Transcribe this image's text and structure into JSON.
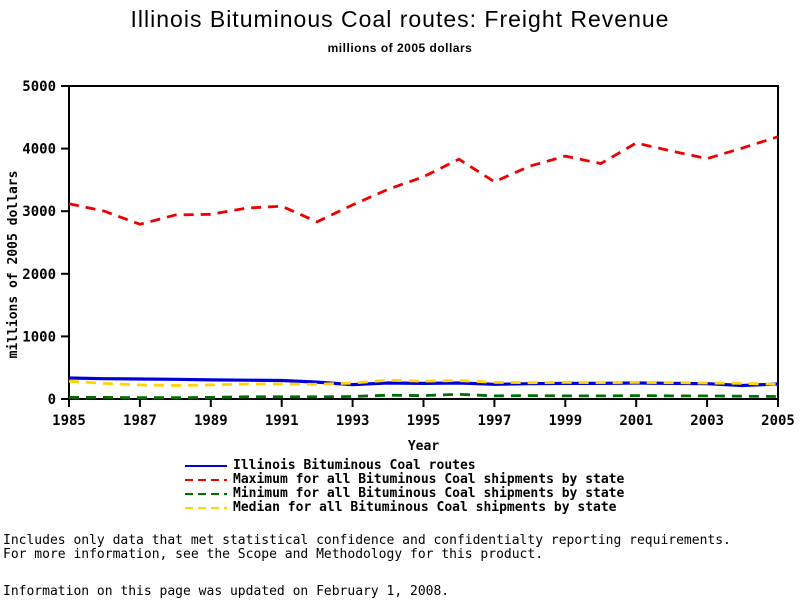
{
  "page": {
    "title": "Illinois Bituminous Coal routes: Freight Revenue",
    "subtitle": "millions of 2005 dollars",
    "notes_line1": "Includes only data that met statistical confidence and confidentialty reporting requirements.",
    "notes_line2": "For more information, see the Scope and Methodology for this product.",
    "updated": "Information on this page was updated on February 1, 2008."
  },
  "chart_data": {
    "type": "line",
    "title": "Illinois Bituminous Coal routes: Freight Revenue",
    "subtitle": "millions of 2005 dollars",
    "xlabel": "Year",
    "ylabel": "millions of 2005 dollars",
    "x": [
      1985,
      1986,
      1987,
      1988,
      1989,
      1990,
      1991,
      1992,
      1993,
      1994,
      1995,
      1996,
      1997,
      1998,
      1999,
      2000,
      2001,
      2002,
      2003,
      2004,
      2005
    ],
    "x_tick_years": [
      1985,
      1987,
      1989,
      1991,
      1993,
      1995,
      1997,
      1999,
      2001,
      2003,
      2005
    ],
    "y_ticks": [
      0,
      1000,
      2000,
      3000,
      4000,
      5000
    ],
    "ylim": [
      0,
      5000
    ],
    "grid": false,
    "legend_position": "bottom",
    "axis_color": "#000000",
    "series": [
      {
        "name": "Illinois Bituminous Coal routes",
        "color": "#0000d8",
        "style": "solid",
        "values": [
          335,
          325,
          320,
          315,
          305,
          300,
          295,
          270,
          230,
          255,
          250,
          255,
          235,
          245,
          250,
          250,
          255,
          250,
          245,
          215,
          240
        ]
      },
      {
        "name": "Maximum for all Bituminous Coal shipments by state",
        "color": "#ee0000",
        "style": "dashed",
        "values": [
          3120,
          3000,
          2790,
          2940,
          2950,
          3050,
          3080,
          2830,
          3100,
          3350,
          3550,
          3830,
          3470,
          3720,
          3880,
          3760,
          4090,
          3960,
          3840,
          4010,
          4190
        ]
      },
      {
        "name": "Minimum for all Bituminous Coal shipments by state",
        "color": "#007000",
        "style": "dashed",
        "values": [
          25,
          25,
          20,
          20,
          25,
          35,
          35,
          35,
          40,
          60,
          55,
          75,
          50,
          55,
          50,
          50,
          55,
          50,
          50,
          45,
          40
        ]
      },
      {
        "name": "Median for all Bituminous Coal shipments by state",
        "color": "#ffd400",
        "style": "dashed",
        "values": [
          285,
          250,
          225,
          215,
          225,
          240,
          240,
          235,
          255,
          300,
          285,
          295,
          265,
          260,
          265,
          260,
          265,
          260,
          255,
          250,
          235
        ]
      }
    ]
  }
}
